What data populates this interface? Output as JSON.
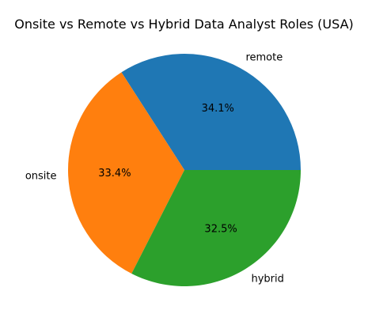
{
  "chart_data": {
    "type": "pie",
    "title": "Onsite vs Remote vs Hybrid Data Analyst Roles (USA)",
    "slices": [
      {
        "label": "remote",
        "value": 34.1,
        "pct_label": "34.1%",
        "color": "#1f77b4"
      },
      {
        "label": "onsite",
        "value": 33.4,
        "pct_label": "33.4%",
        "color": "#ff7f0e"
      },
      {
        "label": "hybrid",
        "value": 32.5,
        "pct_label": "32.5%",
        "color": "#2ca02c"
      }
    ],
    "start_angle_deg": 0,
    "direction": "counterclockwise",
    "legend": "none"
  }
}
